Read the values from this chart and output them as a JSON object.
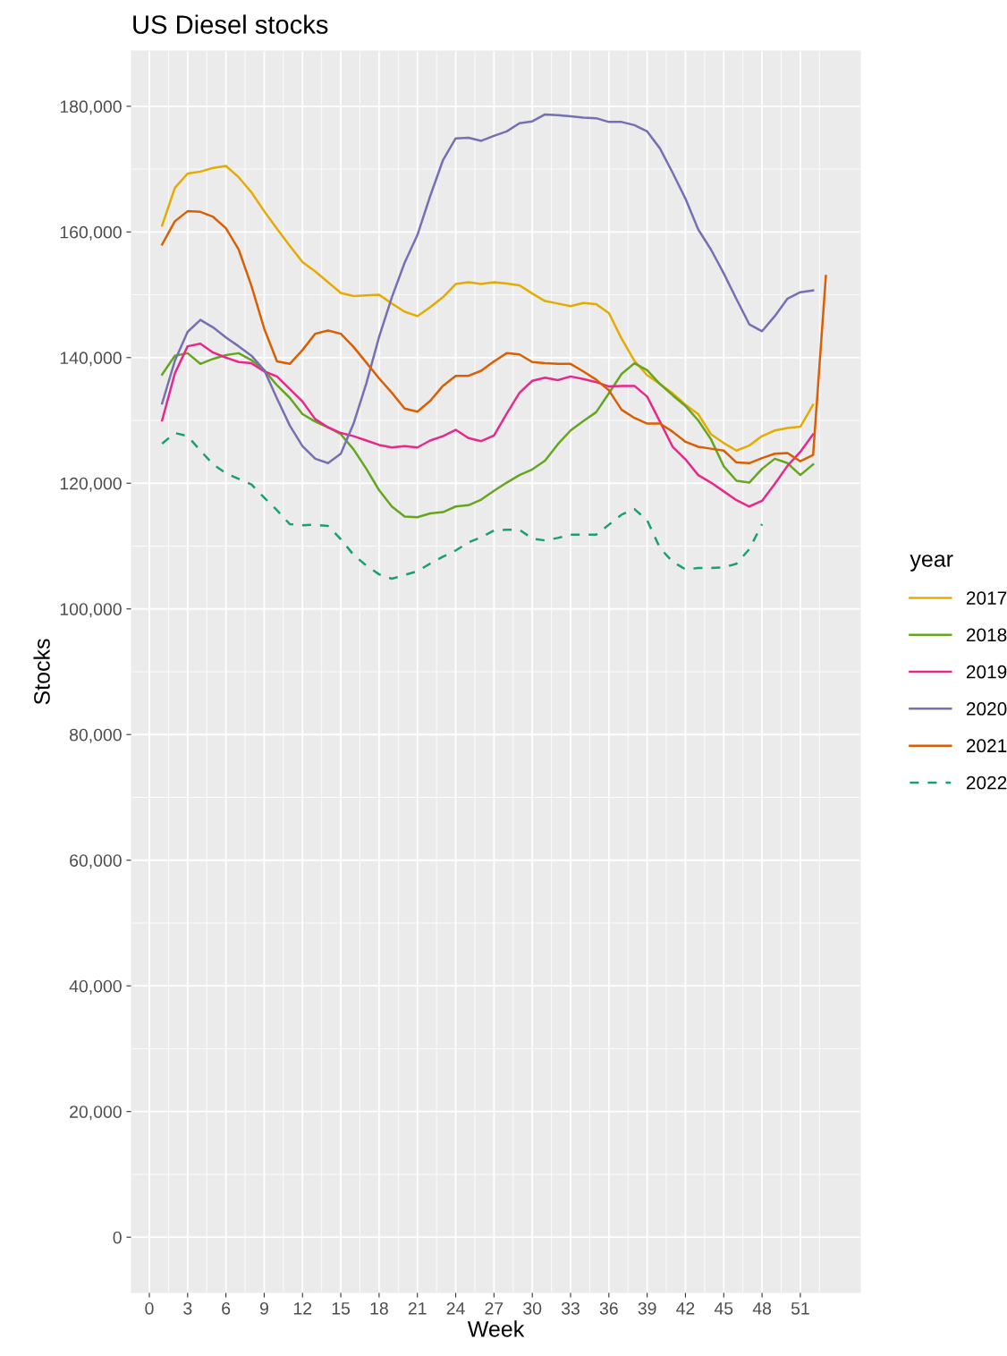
{
  "chart_data": {
    "type": "line",
    "title": "US Diesel stocks",
    "xlabel": "Week",
    "ylabel": "Stocks",
    "legend_title": "year",
    "legend": "right",
    "grid": true,
    "xlim": [
      -1.4,
      55.7
    ],
    "xticks": [
      0,
      3,
      6,
      9,
      12,
      15,
      18,
      21,
      24,
      27,
      30,
      33,
      36,
      39,
      42,
      45,
      48,
      51
    ],
    "ylim": [
      -8800,
      188800
    ],
    "yticks": [
      {
        "value": 0,
        "label": "0"
      },
      {
        "value": 20000,
        "label": "20,000"
      },
      {
        "value": 40000,
        "label": "40,000"
      },
      {
        "value": 60000,
        "label": "60,000"
      },
      {
        "value": 80000,
        "label": "80,000"
      },
      {
        "value": 100000,
        "label": "100,000"
      },
      {
        "value": 120000,
        "label": "120,000"
      },
      {
        "value": 140000,
        "label": "140,000"
      },
      {
        "value": 160000,
        "label": "160,000"
      },
      {
        "value": 180000,
        "label": "180,000"
      }
    ],
    "x": [
      1,
      2,
      3,
      4,
      5,
      6,
      7,
      8,
      9,
      10,
      11,
      12,
      13,
      14,
      15,
      16,
      17,
      18,
      19,
      20,
      21,
      22,
      23,
      24,
      25,
      26,
      27,
      28,
      29,
      30,
      31,
      32,
      33,
      34,
      35,
      36,
      37,
      38,
      39,
      40,
      41,
      42,
      43,
      44,
      45,
      46,
      47,
      48,
      49,
      50,
      51,
      52
    ],
    "series": [
      {
        "name": "2017",
        "color": "#e6ab02",
        "line_style": "solid",
        "values": [
          161000,
          167000,
          169300,
          169600,
          170200,
          170500,
          168700,
          166300,
          163300,
          160500,
          157800,
          155200,
          153700,
          152000,
          150300,
          149800,
          149900,
          150000,
          148600,
          147300,
          146600,
          148000,
          149600,
          151700,
          152000,
          151700,
          152000,
          151800,
          151500,
          150200,
          149000,
          148600,
          148200,
          148700,
          148500,
          147100,
          143000,
          139500,
          137200,
          135800,
          134300,
          132500,
          131000,
          127800,
          126400,
          125200,
          126000,
          127500,
          128400,
          128800,
          129000,
          132500
        ]
      },
      {
        "name": "2018",
        "color": "#66a61e",
        "line_style": "solid",
        "values": [
          137300,
          140300,
          140700,
          139000,
          139800,
          140400,
          140700,
          139600,
          138000,
          135600,
          133600,
          131000,
          129800,
          128900,
          127800,
          125400,
          122300,
          118900,
          116300,
          114700,
          114600,
          115200,
          115400,
          116300,
          116500,
          117400,
          118800,
          120100,
          121300,
          122200,
          123600,
          126200,
          128400,
          129900,
          131300,
          134300,
          137400,
          139100,
          138000,
          135800,
          134000,
          132300,
          130000,
          127000,
          122700,
          120400,
          120100,
          122300,
          123900,
          123200,
          121300,
          123000
        ]
      },
      {
        "name": "2019",
        "color": "#e7298a",
        "line_style": "solid",
        "values": [
          130000,
          137500,
          141800,
          142200,
          140800,
          140000,
          139300,
          139100,
          137800,
          137000,
          135000,
          133000,
          130200,
          128900,
          128000,
          127500,
          126800,
          126100,
          125700,
          125900,
          125700,
          126800,
          127500,
          128500,
          127200,
          126700,
          127600,
          131100,
          134400,
          136300,
          136800,
          136400,
          137000,
          136600,
          136100,
          135400,
          135500,
          135500,
          133800,
          129800,
          125800,
          123800,
          121300,
          120100,
          118700,
          117300,
          116300,
          117200,
          119900,
          122800,
          125000,
          127800
        ]
      },
      {
        "name": "2020",
        "color": "#7570b3",
        "line_style": "solid",
        "values": [
          132700,
          139500,
          144100,
          146000,
          144800,
          143200,
          141800,
          140300,
          138000,
          133500,
          129200,
          125900,
          123900,
          123200,
          124700,
          129500,
          135900,
          143300,
          149600,
          155100,
          159500,
          165700,
          171400,
          174900,
          175000,
          174500,
          175300,
          176000,
          177300,
          177600,
          178700,
          178600,
          178400,
          178200,
          178100,
          177500,
          177500,
          177000,
          176000,
          173300,
          169400,
          165300,
          160400,
          157200,
          153400,
          149300,
          145300,
          144200,
          146600,
          149400,
          150400,
          150700
        ]
      },
      {
        "name": "2021",
        "color": "#d95f02",
        "line_style": "solid",
        "x": [
          1,
          2,
          3,
          4,
          5,
          6,
          7,
          8,
          9,
          10,
          11,
          12,
          13,
          14,
          15,
          16,
          17,
          18,
          19,
          20,
          21,
          22,
          23,
          24,
          25,
          26,
          27,
          28,
          29,
          30,
          31,
          32,
          33,
          34,
          35,
          36,
          37,
          38,
          39,
          40,
          41,
          42,
          43,
          44,
          45,
          46,
          47,
          48,
          49,
          50,
          51,
          52,
          53
        ],
        "values": [
          158000,
          161700,
          163300,
          163200,
          162400,
          160600,
          157200,
          151400,
          144600,
          139400,
          139000,
          141200,
          143800,
          144300,
          143800,
          141700,
          139200,
          136700,
          134400,
          131900,
          131400,
          133100,
          135500,
          137100,
          137100,
          137900,
          139400,
          140700,
          140500,
          139300,
          139100,
          139000,
          139000,
          137800,
          136500,
          134800,
          131700,
          130400,
          129500,
          129500,
          128200,
          126600,
          125800,
          125500,
          125200,
          123300,
          123200,
          124000,
          124700,
          124800,
          123500,
          124500,
          153000
        ]
      },
      {
        "name": "2022",
        "color": "#1b9e77",
        "line_style": "dashed",
        "x": [
          1,
          2,
          3,
          4,
          5,
          6,
          7,
          8,
          9,
          10,
          11,
          12,
          13,
          14,
          15,
          16,
          17,
          18,
          19,
          20,
          21,
          22,
          23,
          24,
          25,
          26,
          27,
          28,
          29,
          30,
          31,
          32,
          33,
          34,
          35,
          36,
          37,
          38,
          39,
          40,
          41,
          42,
          43,
          44,
          45,
          46,
          47,
          48
        ],
        "values": [
          126300,
          128000,
          127500,
          125200,
          123000,
          121600,
          120700,
          119800,
          117700,
          115700,
          113500,
          113300,
          113400,
          113200,
          111100,
          108600,
          106900,
          105500,
          104800,
          105400,
          106000,
          107200,
          108300,
          109300,
          110600,
          111400,
          112500,
          112600,
          112600,
          111200,
          110900,
          111300,
          111800,
          111800,
          111800,
          113400,
          115000,
          115900,
          114100,
          109700,
          107500,
          106300,
          106500,
          106500,
          106600,
          107200,
          109500,
          113500
        ]
      }
    ]
  }
}
